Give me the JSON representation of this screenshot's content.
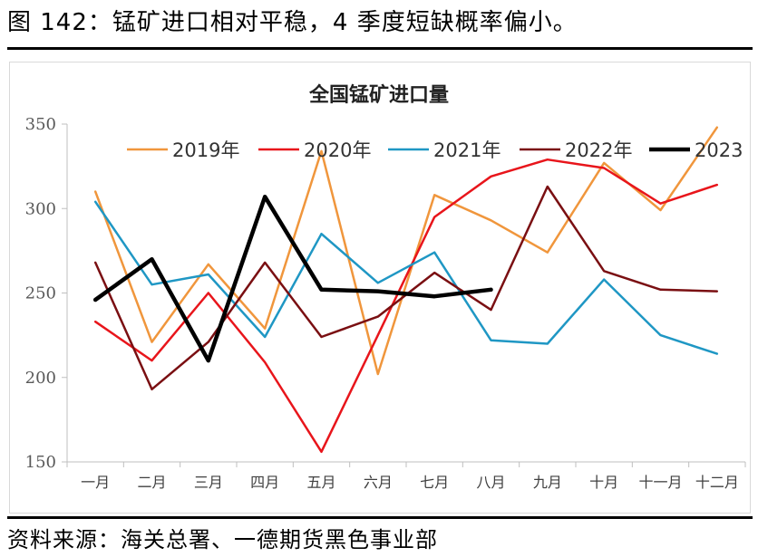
{
  "figure_title": "图 142：锰矿进口相对平稳，4 季度短缺概率偏小。",
  "source_note": "资料来源：海关总署、一德期货黑色事业部",
  "chart_data": {
    "type": "line",
    "title": "全国锰矿进口量",
    "xlabel": "",
    "ylabel": "",
    "ylim": [
      150,
      350
    ],
    "yticks": [
      150,
      200,
      250,
      300,
      350
    ],
    "grid": false,
    "legend_position": "top",
    "categories": [
      "一月",
      "二月",
      "三月",
      "四月",
      "五月",
      "六月",
      "七月",
      "八月",
      "九月",
      "十月",
      "十一月",
      "十二月"
    ],
    "series": [
      {
        "name": "2019年",
        "color": "#f0963c",
        "width": 2.5,
        "values": [
          310,
          221,
          267,
          229,
          334,
          202,
          308,
          293,
          274,
          327,
          299,
          348
        ]
      },
      {
        "name": "2020年",
        "color": "#e8151b",
        "width": 2.5,
        "values": [
          233,
          210,
          250,
          209,
          156,
          225,
          295,
          319,
          329,
          324,
          303,
          314
        ]
      },
      {
        "name": "2021年",
        "color": "#1f97c4",
        "width": 2.5,
        "values": [
          304,
          255,
          261,
          224,
          285,
          256,
          274,
          222,
          220,
          258,
          225,
          214
        ]
      },
      {
        "name": "2022年",
        "color": "#7a0f12",
        "width": 2.5,
        "values": [
          268,
          193,
          221,
          268,
          224,
          236,
          262,
          240,
          313,
          263,
          252,
          251
        ]
      },
      {
        "name": "2023",
        "color": "#000000",
        "width": 4.5,
        "values": [
          246,
          270,
          210,
          307,
          252,
          251,
          248,
          252,
          null,
          null,
          null,
          null
        ]
      }
    ]
  }
}
